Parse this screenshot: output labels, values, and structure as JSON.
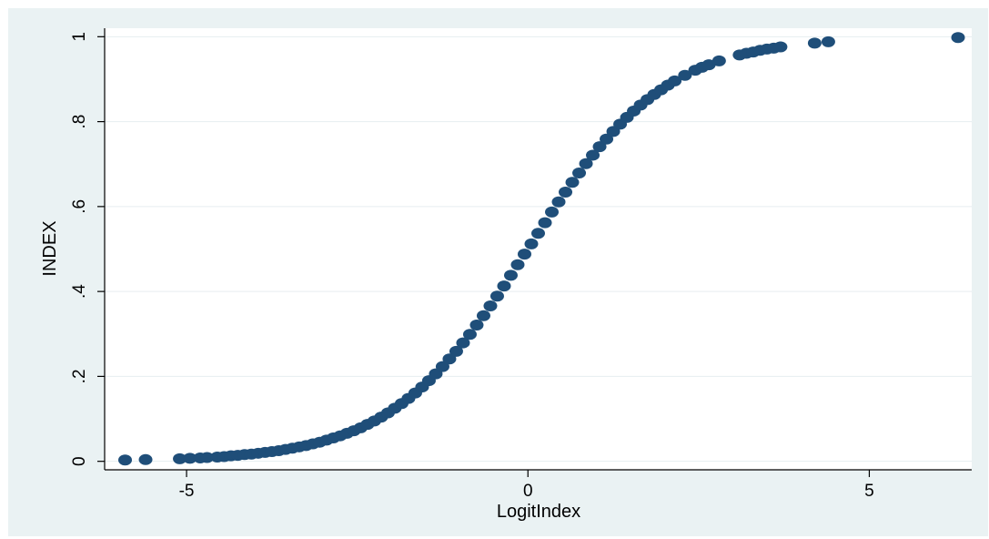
{
  "chart_data": {
    "type": "scatter",
    "xlabel": "LogitIndex",
    "ylabel": "INDEX",
    "xlim": [
      -6.2,
      6.5
    ],
    "ylim": [
      -0.02,
      1.02
    ],
    "x_ticks": [
      {
        "value": -5,
        "label": "-5"
      },
      {
        "value": 0,
        "label": "0"
      },
      {
        "value": 5,
        "label": "5"
      }
    ],
    "y_ticks": [
      {
        "value": 0,
        "label": "0"
      },
      {
        "value": 0.2,
        "label": ".2"
      },
      {
        "value": 0.4,
        "label": ".4"
      },
      {
        "value": 0.6,
        "label": ".6"
      },
      {
        "value": 0.8,
        "label": ".8"
      },
      {
        "value": 1,
        "label": "1"
      }
    ],
    "grid": "horizontal",
    "legend": "none",
    "marker_color": "#1f4e79",
    "background_color": "#eaf2f3",
    "series": [
      {
        "x": [
          -5.9,
          -5.6,
          -5.1,
          -4.95,
          -4.8,
          -4.7,
          -4.55,
          -4.45,
          -4.35,
          -4.25,
          -4.15,
          -4.05,
          -3.95,
          -3.85,
          -3.75,
          -3.65,
          -3.55,
          -3.45,
          -3.35,
          -3.25,
          -3.15,
          -3.05,
          -2.95,
          -2.85,
          -2.75,
          -2.65,
          -2.55,
          -2.45,
          -2.35,
          -2.25,
          -2.15,
          -2.05,
          -1.95,
          -1.85,
          -1.75,
          -1.65,
          -1.55,
          -1.45,
          -1.35,
          -1.25,
          -1.15,
          -1.05,
          -0.95,
          -0.85,
          -0.75,
          -0.65,
          -0.55,
          -0.45,
          -0.35,
          -0.25,
          -0.15,
          -0.05,
          0.05,
          0.15,
          0.25,
          0.35,
          0.45,
          0.55,
          0.65,
          0.75,
          0.85,
          0.95,
          1.05,
          1.15,
          1.25,
          1.35,
          1.45,
          1.55,
          1.65,
          1.75,
          1.85,
          1.95,
          2.05,
          2.15,
          2.3,
          2.45,
          2.55,
          2.65,
          2.8,
          3.1,
          3.2,
          3.3,
          3.4,
          3.5,
          3.6,
          3.7,
          4.2,
          4.4,
          6.3
        ],
        "y": [
          0.003,
          0.004,
          0.006,
          0.007,
          0.008,
          0.009,
          0.01,
          0.011,
          0.013,
          0.014,
          0.016,
          0.017,
          0.019,
          0.021,
          0.023,
          0.025,
          0.028,
          0.031,
          0.034,
          0.037,
          0.041,
          0.045,
          0.05,
          0.055,
          0.06,
          0.066,
          0.072,
          0.079,
          0.087,
          0.095,
          0.104,
          0.114,
          0.125,
          0.136,
          0.148,
          0.161,
          0.175,
          0.19,
          0.206,
          0.223,
          0.241,
          0.259,
          0.279,
          0.299,
          0.321,
          0.343,
          0.366,
          0.389,
          0.413,
          0.438,
          0.463,
          0.488,
          0.512,
          0.537,
          0.562,
          0.587,
          0.611,
          0.634,
          0.657,
          0.679,
          0.701,
          0.721,
          0.741,
          0.759,
          0.777,
          0.794,
          0.81,
          0.825,
          0.839,
          0.852,
          0.864,
          0.875,
          0.886,
          0.896,
          0.909,
          0.921,
          0.928,
          0.934,
          0.943,
          0.957,
          0.961,
          0.964,
          0.968,
          0.971,
          0.973,
          0.976,
          0.985,
          0.988,
          0.998
        ]
      }
    ]
  }
}
